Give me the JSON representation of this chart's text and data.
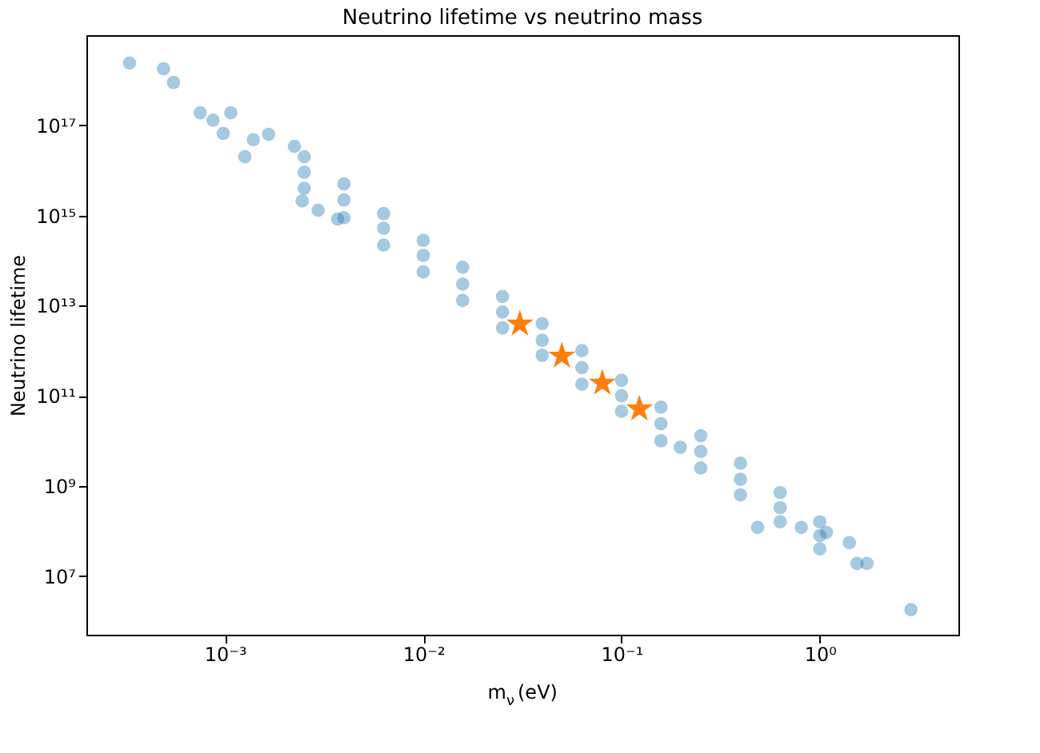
{
  "chart_data": {
    "type": "scatter",
    "title": "Neutrino lifetime vs neutrino mass",
    "xlabel": "m$_{ν}$ (eV)",
    "ylabel": "Neutrino lifetime",
    "log": "xy",
    "grid": false,
    "xlim": [
      0.0002,
      5
    ],
    "ylim": [
      500000,
      1e+19
    ],
    "xticks": [
      {
        "value": 0.001,
        "label": "10⁻³"
      },
      {
        "value": 0.01,
        "label": "10⁻²"
      },
      {
        "value": 0.1,
        "label": "10⁻¹"
      },
      {
        "value": 1,
        "label": "10⁰"
      }
    ],
    "yticks": [
      {
        "value": 10000000.0,
        "label": "10⁷"
      },
      {
        "value": 1000000000.0,
        "label": "10⁹"
      },
      {
        "value": 100000000000.0,
        "label": "10¹¹"
      },
      {
        "value": 10000000000000.0,
        "label": "10¹³"
      },
      {
        "value": 1000000000000000.0,
        "label": "10¹⁵"
      },
      {
        "value": 1e+17,
        "label": "10¹⁷"
      }
    ],
    "series": [
      {
        "type": "scatter",
        "marker": "circle",
        "color": "#1f77b4",
        "x": [
          0.00033,
          0.00049,
          0.00055,
          0.00075,
          0.00087,
          0.00098,
          0.00107,
          0.00139,
          0.00166,
          0.00126,
          0.00224,
          0.00245,
          0.00295,
          0.0037,
          0.00251,
          0.00251,
          0.00251,
          0.00398,
          0.00398,
          0.00398,
          0.00631,
          0.00631,
          0.00631,
          0.01,
          0.01,
          0.01,
          0.0158,
          0.0158,
          0.0158,
          0.0251,
          0.0251,
          0.0251,
          0.0398,
          0.0398,
          0.0398,
          0.0631,
          0.0631,
          0.0631,
          0.1,
          0.1,
          0.1,
          0.158,
          0.158,
          0.158,
          0.251,
          0.251,
          0.251,
          0.398,
          0.398,
          0.398,
          0.631,
          0.631,
          0.631,
          1.0,
          1.0,
          1.0,
          0.198,
          0.486,
          0.807,
          1.08,
          1.41,
          1.73,
          1.54,
          2.88
        ],
        "values": [
          2.4e+18,
          1.8e+18,
          8.9e+17,
          1.9e+17,
          1.3e+17,
          6.6e+16,
          1.9e+17,
          4.8e+16,
          6.3e+16,
          2e+16,
          3.4e+16,
          2100000000000000.0,
          1300000000000000.0,
          830000000000000.0,
          2e+16,
          9100000000000000.0,
          4000000000000000.0,
          5000000000000000.0,
          2200000000000000.0,
          890000000000000.0,
          1100000000000000.0,
          520000000000000.0,
          220000000000000.0,
          280000000000000.0,
          130000000000000.0,
          56000000000000.0,
          71000000000000.0,
          30000000000000.0,
          13000000000000.0,
          16000000000000.0,
          7200000000000.0,
          3200000000000.0,
          4000000000000.0,
          1700000000000.0,
          790000000000.0,
          1000000000000.0,
          420000000000.0,
          180000000000.0,
          220000000000.0,
          100000000000.0,
          45000000000.0,
          56000000000.0,
          24000000000.0,
          10000000000.0,
          13000000000.0,
          5800000000.0,
          2500000000.0,
          3200000000.0,
          1400000000.0,
          630000000.0,
          710000000.0,
          330000000.0,
          160000000.0,
          160000000.0,
          79000000.0,
          40000000.0,
          7200000000.0,
          120000000.0,
          120000000.0,
          93000000.0,
          55000000.0,
          19000000.0,
          19000000.0,
          1800000.0
        ]
      },
      {
        "type": "scatter",
        "marker": "star",
        "color": "#ff7f0e",
        "x": [
          0.0307,
          0.05,
          0.08,
          0.123
        ],
        "values": [
          3900000000000.0,
          760000000000.0,
          190000000000.0,
          51000000000.0
        ]
      }
    ]
  }
}
